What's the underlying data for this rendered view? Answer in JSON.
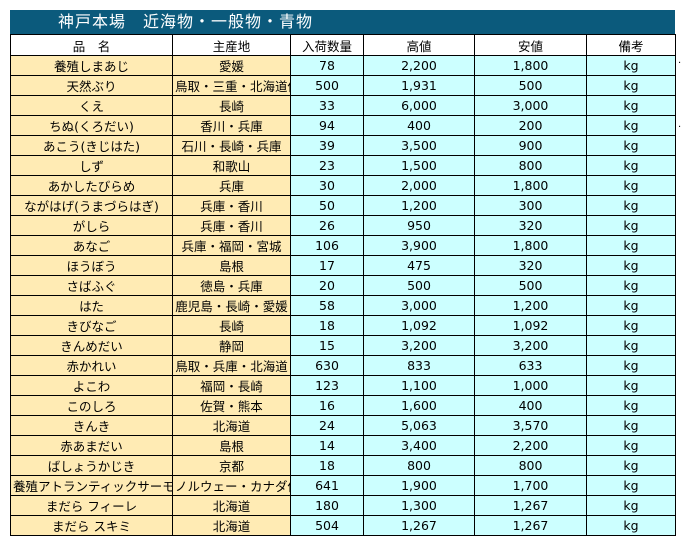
{
  "title": "神戸本場　近海物・一般物・青物",
  "headers": [
    "品　名",
    "主産地",
    "入荷数量",
    "高値",
    "安値",
    "備考"
  ],
  "rows": [
    [
      "養殖しまあじ",
      "愛媛",
      "78",
      "2,200",
      "1,800",
      "kg"
    ],
    [
      "天然ぶり",
      "鳥取・三重・北海道他",
      "500",
      "1,931",
      "500",
      "kg"
    ],
    [
      "くえ",
      "長崎",
      "33",
      "6,000",
      "3,000",
      "kg"
    ],
    [
      "ちぬ(くろだい)",
      "香川・兵庫",
      "94",
      "400",
      "200",
      "kg"
    ],
    [
      "あこう(きじはた)",
      "石川・長崎・兵庫",
      "39",
      "3,500",
      "900",
      "kg"
    ],
    [
      "しず",
      "和歌山",
      "23",
      "1,500",
      "800",
      "kg"
    ],
    [
      "あかしたびらめ",
      "兵庫",
      "30",
      "2,000",
      "1,800",
      "kg"
    ],
    [
      "ながはげ(うまづらはぎ)",
      "兵庫・香川",
      "50",
      "1,200",
      "300",
      "kg"
    ],
    [
      "がしら",
      "兵庫・香川",
      "26",
      "950",
      "320",
      "kg"
    ],
    [
      "あなご",
      "兵庫・福岡・宮城",
      "106",
      "3,900",
      "1,800",
      "kg"
    ],
    [
      "ほうぼう",
      "島根",
      "17",
      "475",
      "320",
      "kg"
    ],
    [
      "さばふぐ",
      "徳島・兵庫",
      "20",
      "500",
      "500",
      "kg"
    ],
    [
      "はた",
      "鹿児島・長崎・愛媛",
      "58",
      "3,000",
      "1,200",
      "kg"
    ],
    [
      "きびなご",
      "長崎",
      "18",
      "1,092",
      "1,092",
      "kg"
    ],
    [
      "きんめだい",
      "静岡",
      "15",
      "3,200",
      "3,200",
      "kg"
    ],
    [
      "赤かれい",
      "鳥取・兵庫・北海道",
      "630",
      "833",
      "633",
      "kg"
    ],
    [
      "よこわ",
      "福岡・長崎",
      "123",
      "1,100",
      "1,000",
      "kg"
    ],
    [
      "このしろ",
      "佐賀・熊本",
      "16",
      "1,600",
      "400",
      "kg"
    ],
    [
      "きんき",
      "北海道",
      "24",
      "5,063",
      "3,570",
      "kg"
    ],
    [
      "赤あまだい",
      "島根",
      "14",
      "3,400",
      "2,200",
      "kg"
    ],
    [
      "ばしょうかじき",
      "京都",
      "18",
      "800",
      "800",
      "kg"
    ],
    [
      "養殖アトランティックサーモン",
      "ノルウェー・カナダ他",
      "641",
      "1,900",
      "1,700",
      "kg"
    ],
    [
      "まだら フィーレ",
      "北海道",
      "180",
      "1,300",
      "1,267",
      "kg"
    ],
    [
      "まだら スキミ",
      "北海道",
      "504",
      "1,267",
      "1,267",
      "kg"
    ]
  ]
}
